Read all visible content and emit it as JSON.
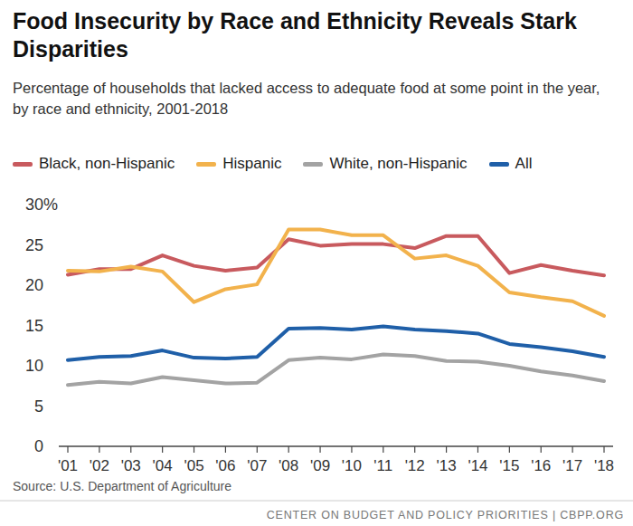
{
  "chart_data": {
    "type": "line",
    "title": "Food Insecurity by Race and Ethnicity Reveals Stark Disparities",
    "subtitle": "Percentage of households that lacked access to adequate food at some point in the year, by race and ethnicity, 2001-2018",
    "source": "Source: U.S. Department of Agriculture",
    "credit": "CENTER ON BUDGET AND POLICY PRIORITIES | CBPP.ORG",
    "categories": [
      "'01",
      "'02",
      "'03",
      "'04",
      "'05",
      "'06",
      "'07",
      "'08",
      "'09",
      "'10",
      "'11",
      "'12",
      "'13",
      "'14",
      "'15",
      "'16",
      "'17",
      "'18"
    ],
    "series": [
      {
        "name": "Black, non-Hispanic",
        "color": "#c85a5e",
        "values": [
          21.3,
          22.0,
          22.0,
          23.7,
          22.4,
          21.8,
          22.2,
          25.7,
          24.9,
          25.1,
          25.1,
          24.6,
          26.1,
          26.1,
          21.5,
          22.5,
          21.8,
          21.2
        ]
      },
      {
        "name": "Hispanic",
        "color": "#f2b24c",
        "values": [
          21.8,
          21.7,
          22.3,
          21.7,
          17.9,
          19.5,
          20.1,
          26.9,
          26.9,
          26.2,
          26.2,
          23.3,
          23.7,
          22.4,
          19.1,
          18.5,
          18.0,
          16.2
        ]
      },
      {
        "name": "White, non-Hispanic",
        "color": "#a3a3a3",
        "values": [
          7.6,
          8.0,
          7.8,
          8.6,
          8.2,
          7.8,
          7.9,
          10.7,
          11.0,
          10.8,
          11.4,
          11.2,
          10.6,
          10.5,
          10.0,
          9.3,
          8.8,
          8.1
        ]
      },
      {
        "name": "All",
        "color": "#1f5fa8",
        "values": [
          10.7,
          11.1,
          11.2,
          11.9,
          11.0,
          10.9,
          11.1,
          14.6,
          14.7,
          14.5,
          14.9,
          14.5,
          14.3,
          14.0,
          12.7,
          12.3,
          11.8,
          11.1
        ]
      }
    ],
    "ylim": [
      0,
      30
    ],
    "yticks": [
      0,
      5,
      10,
      15,
      20,
      25,
      {
        "value": 30,
        "label": "30%"
      }
    ],
    "grid": false,
    "legend": "top"
  }
}
